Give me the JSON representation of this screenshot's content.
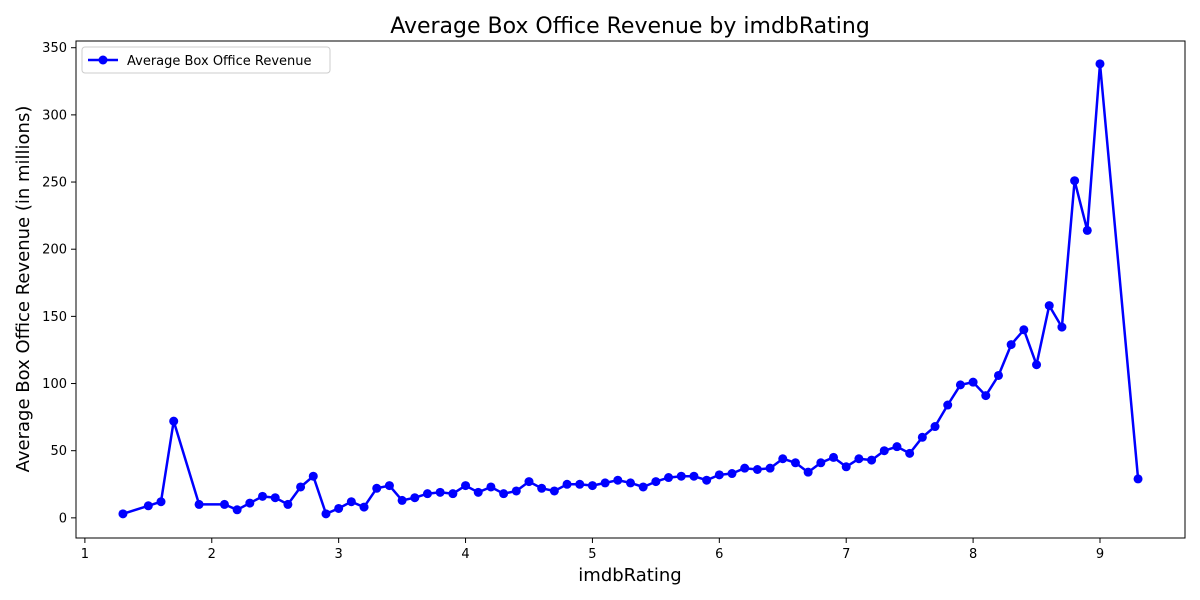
{
  "chart_data": {
    "type": "line",
    "title": "Average Box Office Revenue by imdbRating",
    "xlabel": "imdbRating",
    "ylabel": "Average Box Office Revenue (in millions)",
    "xlim": [
      0.93,
      9.67
    ],
    "ylim": [
      -15,
      355
    ],
    "xticks": [
      1,
      2,
      3,
      4,
      5,
      6,
      7,
      8,
      9
    ],
    "yticks": [
      0,
      50,
      100,
      150,
      200,
      250,
      300,
      350
    ],
    "grid": false,
    "legend_position": "upper-left",
    "series": [
      {
        "name": "Average Box Office Revenue",
        "color": "#0000ff",
        "marker": "circle",
        "x": [
          1.3,
          1.5,
          1.6,
          1.7,
          1.9,
          2.1,
          2.2,
          2.3,
          2.4,
          2.5,
          2.6,
          2.7,
          2.8,
          2.9,
          3.0,
          3.1,
          3.2,
          3.3,
          3.4,
          3.5,
          3.6,
          3.7,
          3.8,
          3.9,
          4.0,
          4.1,
          4.2,
          4.3,
          4.4,
          4.5,
          4.6,
          4.7,
          4.8,
          4.9,
          5.0,
          5.1,
          5.2,
          5.3,
          5.4,
          5.5,
          5.6,
          5.7,
          5.8,
          5.9,
          6.0,
          6.1,
          6.2,
          6.3,
          6.4,
          6.5,
          6.6,
          6.7,
          6.8,
          6.9,
          7.0,
          7.1,
          7.2,
          7.3,
          7.4,
          7.5,
          7.6,
          7.7,
          7.8,
          7.9,
          8.0,
          8.1,
          8.2,
          8.3,
          8.4,
          8.5,
          8.6,
          8.7,
          8.8,
          8.9,
          9.0,
          9.3
        ],
        "y": [
          3,
          9,
          12,
          72,
          10,
          10,
          6,
          11,
          16,
          15,
          10,
          23,
          31,
          3,
          7,
          12,
          8,
          22,
          24,
          13,
          15,
          18,
          19,
          18,
          24,
          19,
          23,
          18,
          20,
          27,
          22,
          20,
          25,
          25,
          24,
          26,
          28,
          26,
          23,
          27,
          30,
          31,
          31,
          28,
          32,
          33,
          37,
          36,
          37,
          44,
          41,
          34,
          41,
          45,
          38,
          44,
          43,
          50,
          53,
          48,
          60,
          68,
          84,
          99,
          101,
          91,
          106,
          129,
          140,
          114,
          158,
          142,
          251,
          214,
          338,
          29
        ]
      }
    ]
  }
}
